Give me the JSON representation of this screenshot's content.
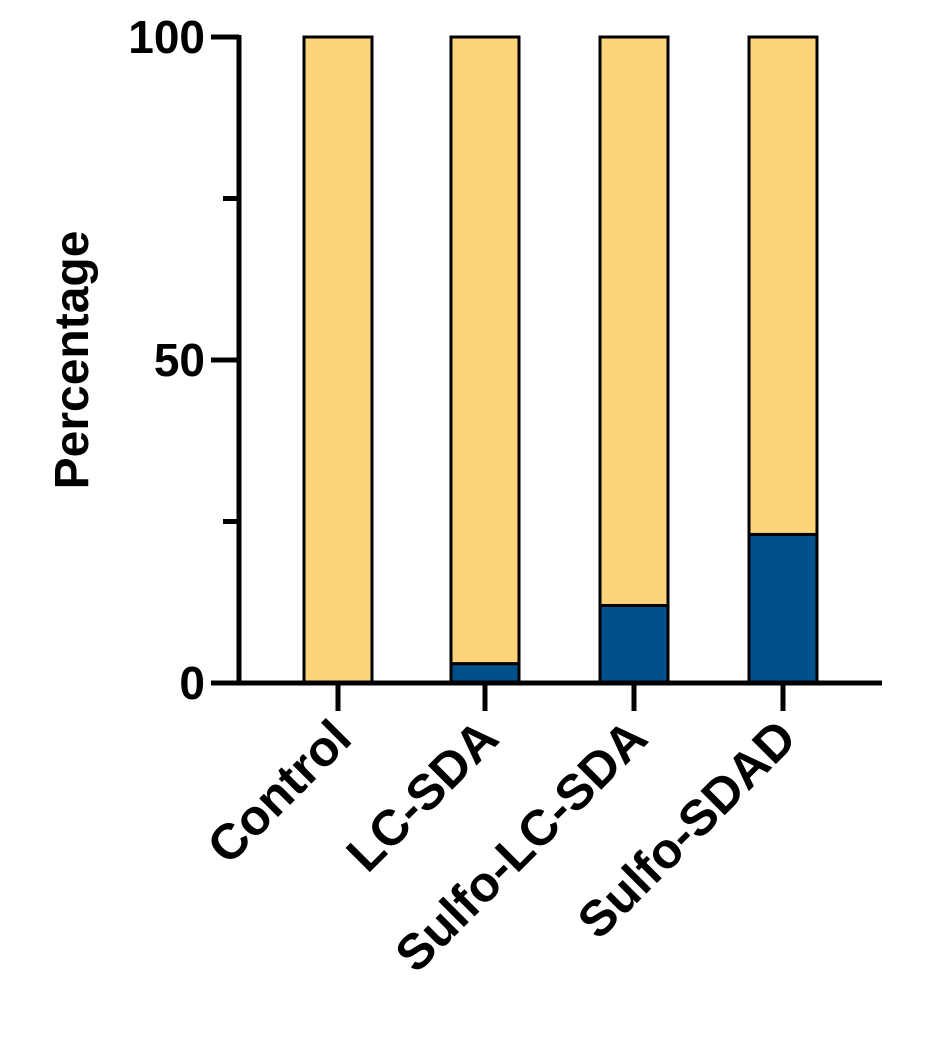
{
  "chart_data": {
    "type": "bar",
    "stacked": true,
    "title": "",
    "xlabel": "",
    "ylabel": "Percentage",
    "ylim": [
      0,
      100
    ],
    "yticks_major": [
      0,
      50,
      100
    ],
    "yticks_minor": [
      25,
      75
    ],
    "grid": false,
    "categories": [
      "Control",
      "LC-SDA",
      "Sulfo-LC-SDA",
      "Sulfo-SDAD"
    ],
    "series": [
      {
        "name": "lower",
        "color": "#00508C",
        "values": [
          0,
          3,
          12,
          23
        ]
      },
      {
        "name": "upper",
        "color": "#FDD47A",
        "values": [
          100,
          97,
          88,
          77
        ]
      }
    ]
  }
}
